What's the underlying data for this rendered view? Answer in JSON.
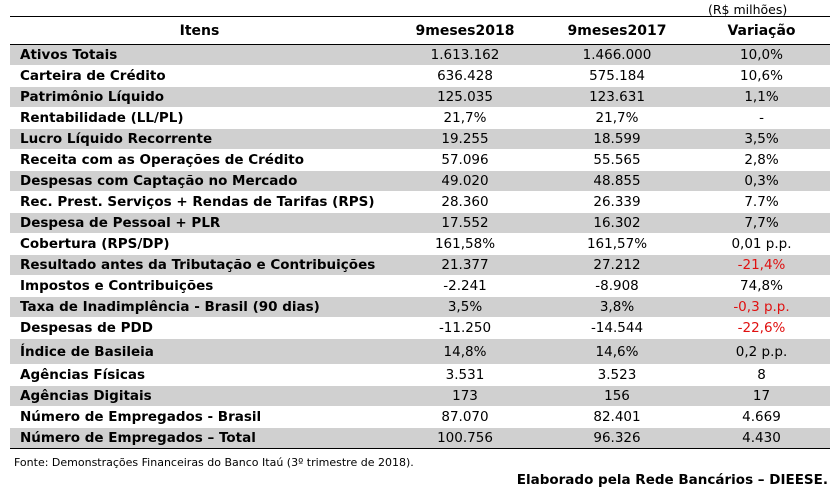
{
  "units_note": "(R$ milhões)",
  "headers": [
    "Itens",
    "9meses2018",
    "9meses2017",
    "Variação"
  ],
  "rows": [
    {
      "label": "Ativos Totais",
      "v2018": "1.613.162",
      "v2017": "1.466.000",
      "var": "10,0%"
    },
    {
      "label": "Carteira de Crédito",
      "v2018": "636.428",
      "v2017": "575.184",
      "var": "10,6%"
    },
    {
      "label": "Patrimônio Líquido",
      "v2018": "125.035",
      "v2017": "123.631",
      "var": "1,1%"
    },
    {
      "label": "Rentabilidade (LL/PL)",
      "v2018": "21,7%",
      "v2017": "21,7%",
      "var": "-"
    },
    {
      "label": "Lucro Líquido Recorrente",
      "v2018": "19.255",
      "v2017": "18.599",
      "var": "3,5%"
    },
    {
      "label": "Receita com as Operações de Crédito",
      "v2018": "57.096",
      "v2017": "55.565",
      "var": "2,8%"
    },
    {
      "label": "Despesas com Captação no Mercado",
      "v2018": "49.020",
      "v2017": "48.855",
      "var": "0,3%"
    },
    {
      "label": "Rec. Prest. Serviços + Rendas de Tarifas (RPS)",
      "v2018": "28.360",
      "v2017": "26.339",
      "var": "7.7%"
    },
    {
      "label": "Despesa de Pessoal + PLR",
      "v2018": "17.552",
      "v2017": "16.302",
      "var": "7,7%"
    },
    {
      "label": "Cobertura (RPS/DP)",
      "v2018": "161,58%",
      "v2017": "161,57%",
      "var": "0,01 p.p."
    },
    {
      "label": "Resultado antes da Tributação e Contribuições",
      "v2018": "21.377",
      "v2017": "27.212",
      "var": "-21,4%"
    },
    {
      "label": "Impostos e Contribuições",
      "v2018": "-2.241",
      "v2017": "-8.908",
      "var": "74,8%"
    },
    {
      "label": "Taxa de Inadimplência - Brasil (90 dias)",
      "v2018": "3,5%",
      "v2017": "3,8%",
      "var": "-0,3 p.p."
    },
    {
      "label": "Despesas de PDD",
      "v2018": "-11.250",
      "v2017": "-14.544",
      "var": "-22,6%"
    },
    {
      "label": "Índice de Basileia",
      "v2018": "14,8%",
      "v2017": "14,6%",
      "var": "0,2 p.p."
    },
    {
      "label": "Agências Físicas",
      "v2018": "3.531",
      "v2017": "3.523",
      "var": "8"
    },
    {
      "label": "Agências Digitais",
      "v2018": "173",
      "v2017": "156",
      "var": "17"
    },
    {
      "label": "Número de Empregados - Brasil",
      "v2018": "87.070",
      "v2017": "82.401",
      "var": "4.669"
    },
    {
      "label": "Número de Empregados – Total",
      "v2018": "100.756",
      "v2017": "96.326",
      "var": "4.430"
    }
  ],
  "source": "Fonte: Demonstrações Financeiras do Banco Itaú (3º trimestre de 2018).",
  "credit": "Elaborado pela Rede Bancários – DIEESE.",
  "negative_color": "#e01010"
}
